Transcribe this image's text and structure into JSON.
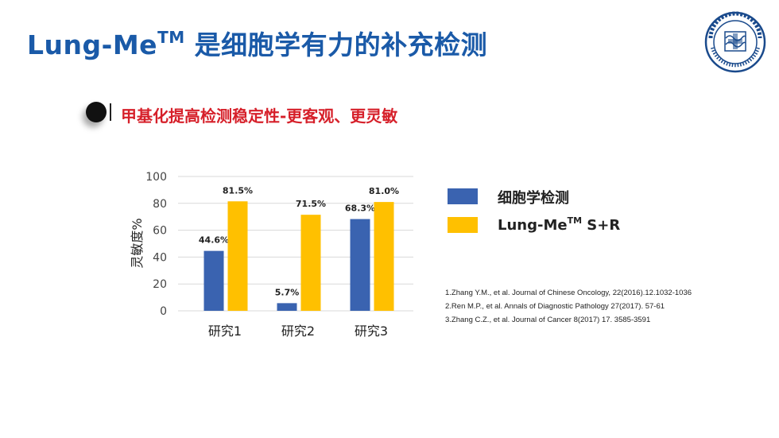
{
  "slide": {
    "title_main": "Lung-Me",
    "title_sup": "TM",
    "title_rest": " 是细胞学有力的补充检测",
    "subtitle": "甲基化提高检测稳定性-更客观、更灵敏",
    "logo_icon": "hospital-seal-icon"
  },
  "legend": [
    {
      "label": "细胞学检测",
      "label_sup": "",
      "label_after": "",
      "color": "#3a63b0"
    },
    {
      "label": "Lung-Me",
      "label_sup": "TM",
      "label_after": " S+R",
      "color": "#ffc000"
    }
  ],
  "references": [
    "1.Zhang Y.M., et al. Journal of Chinese Oncology, 22(2016).12.1032-1036",
    "2.Ren M.P., et al. Annals of Diagnostic Pathology 27(2017). 57-61",
    "3.Zhang C.Z., et al. Journal of Cancer 8(2017) 17. 3585-3591"
  ],
  "chart_data": {
    "type": "bar",
    "categories": [
      "研究1",
      "研究2",
      "研究3"
    ],
    "series": [
      {
        "name": "细胞学检测",
        "values": [
          44.6,
          5.7,
          68.3
        ],
        "labels": [
          "44.6%",
          "5.7%",
          "68.3%"
        ],
        "color": "#3a63b0"
      },
      {
        "name": "Lung-Me™ S+R",
        "values": [
          81.5,
          71.5,
          81.0
        ],
        "labels": [
          "81.5%",
          "71.5%",
          "81.0%"
        ],
        "color": "#ffc000"
      }
    ],
    "ylabel": "灵敏度%",
    "ylim": [
      0,
      100
    ],
    "yticks": [
      0,
      20,
      40,
      60,
      80,
      100
    ],
    "grid": true,
    "legend_position": "right"
  }
}
